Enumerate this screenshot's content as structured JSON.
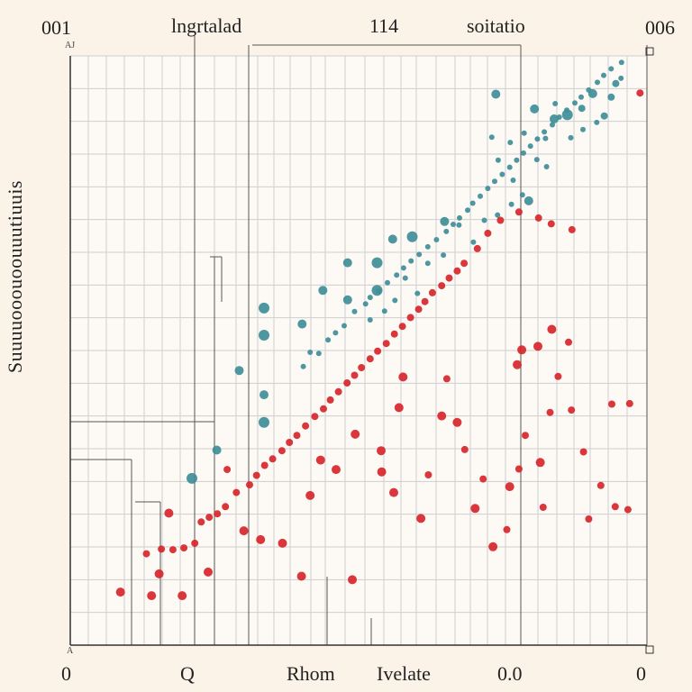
{
  "labels": {
    "top_left": "001",
    "top_left_small": "AJ",
    "title_1": "lngrtalad",
    "title_2": "114",
    "title_3": "soitatio",
    "top_right": "006",
    "bottom_left_small": "A",
    "x_ticks": [
      "0",
      "Q",
      "Rhom",
      "Ivelate",
      "0.0",
      "0"
    ],
    "ylabel": "Suuuuooouoouuutiuuis"
  },
  "colors": {
    "background": "#fbf3e8",
    "teal": "#3f8e98",
    "red": "#d7262b",
    "grid": "#cfcfcf",
    "axis": "#333333"
  },
  "chart_data": {
    "type": "scatter",
    "xlim": [
      0,
      100
    ],
    "ylim": [
      0,
      100
    ],
    "grid": true,
    "series": [
      {
        "color": "teal",
        "points": [
          [
            21.1,
            28.3,
            6
          ],
          [
            25.4,
            33.1,
            5
          ],
          [
            29.3,
            46.6,
            5
          ],
          [
            33.6,
            37.8,
            6
          ],
          [
            33.6,
            52.6,
            6
          ],
          [
            33.6,
            57.2,
            6
          ],
          [
            33.6,
            42.5,
            5
          ],
          [
            40.2,
            54.5,
            5
          ],
          [
            43.8,
            60.2,
            5
          ],
          [
            48.1,
            58.6,
            5
          ],
          [
            48.1,
            64.9,
            5
          ],
          [
            53.2,
            64.9,
            6
          ],
          [
            53.2,
            60.2,
            6
          ],
          [
            55.9,
            68.9,
            5
          ],
          [
            59.3,
            69.3,
            6
          ],
          [
            64.9,
            71.9,
            5
          ],
          [
            73.8,
            93.5,
            5
          ],
          [
            79.5,
            75.4,
            5
          ],
          [
            80.5,
            91.0,
            5
          ],
          [
            83.9,
            89.3,
            5
          ],
          [
            86.2,
            90.0,
            6
          ],
          [
            88.7,
            91.1,
            4
          ],
          [
            90.6,
            93.6,
            5
          ],
          [
            92.6,
            89.8,
            4
          ],
          [
            93.8,
            93.0,
            4
          ],
          [
            94.6,
            95.3,
            4
          ],
          [
            95.5,
            96.2,
            3
          ],
          [
            40.4,
            47.3,
            3
          ],
          [
            41.6,
            49.7,
            3
          ],
          [
            43.1,
            49.5,
            3
          ],
          [
            44.7,
            51.8,
            3
          ],
          [
            46.0,
            53.0,
            3
          ],
          [
            47.5,
            54.2,
            3
          ],
          [
            49.3,
            56.6,
            3
          ],
          [
            51.2,
            57.9,
            3
          ],
          [
            52.0,
            59.0,
            3
          ],
          [
            53.5,
            60.1,
            3
          ],
          [
            55.0,
            61.5,
            3
          ],
          [
            56.6,
            62.8,
            3
          ],
          [
            57.8,
            64.0,
            3
          ],
          [
            59.1,
            65.2,
            3
          ],
          [
            60.5,
            66.3,
            3
          ],
          [
            62.0,
            67.6,
            3
          ],
          [
            63.5,
            68.8,
            3
          ],
          [
            65.2,
            70.2,
            3
          ],
          [
            66.4,
            71.4,
            3
          ],
          [
            67.5,
            72.5,
            3
          ],
          [
            68.9,
            73.8,
            3
          ],
          [
            69.8,
            75.0,
            3
          ],
          [
            71.1,
            76.2,
            3
          ],
          [
            72.4,
            77.5,
            3
          ],
          [
            73.6,
            78.7,
            3
          ],
          [
            74.9,
            79.9,
            3
          ],
          [
            76.2,
            81.1,
            3
          ],
          [
            77.4,
            82.3,
            3
          ],
          [
            78.6,
            83.5,
            3
          ],
          [
            79.8,
            84.7,
            3
          ],
          [
            81.0,
            85.9,
            3
          ],
          [
            82.2,
            87.1,
            3
          ],
          [
            83.6,
            88.3,
            3
          ],
          [
            84.8,
            89.6,
            3
          ],
          [
            86.1,
            90.8,
            3
          ],
          [
            87.5,
            92.0,
            3
          ],
          [
            88.6,
            93.0,
            3
          ],
          [
            89.9,
            94.2,
            3
          ],
          [
            91.4,
            95.5,
            3
          ],
          [
            92.5,
            96.7,
            3
          ],
          [
            93.8,
            97.8,
            3
          ],
          [
            95.6,
            98.9,
            3
          ],
          [
            73.1,
            86.2,
            3
          ],
          [
            76.3,
            85.3,
            3
          ],
          [
            78.7,
            86.9,
            3
          ],
          [
            82.4,
            86.0,
            3
          ],
          [
            84.1,
            91.9,
            3
          ],
          [
            74.2,
            82.3,
            3
          ],
          [
            76.8,
            78.9,
            3
          ],
          [
            80.9,
            82.4,
            3
          ],
          [
            82.6,
            81.2,
            3
          ],
          [
            86.8,
            86.1,
            3
          ],
          [
            88.9,
            87.5,
            3
          ],
          [
            91.3,
            88.7,
            3
          ],
          [
            67.4,
            71.3,
            3
          ],
          [
            69.9,
            68.4,
            3
          ],
          [
            71.8,
            72.1,
            3
          ],
          [
            74.1,
            73.0,
            3
          ],
          [
            76.5,
            74.8,
            3
          ],
          [
            78.4,
            76.4,
            3
          ],
          [
            64.7,
            66.2,
            3
          ],
          [
            62.0,
            64.8,
            3
          ],
          [
            60.2,
            59.7,
            3
          ],
          [
            58.1,
            62.3,
            3
          ],
          [
            56.3,
            58.5,
            3
          ],
          [
            54.5,
            56.7,
            3
          ],
          [
            52.0,
            55.2,
            3
          ]
        ]
      },
      {
        "color": "red",
        "points": [
          [
            8.7,
            9.0,
            5
          ],
          [
            14.1,
            8.4,
            5
          ],
          [
            19.4,
            8.4,
            5
          ],
          [
            15.4,
            12.1,
            5
          ],
          [
            13.2,
            15.5,
            4
          ],
          [
            15.8,
            16.3,
            4
          ],
          [
            17.8,
            16.2,
            4
          ],
          [
            19.7,
            16.5,
            4
          ],
          [
            21.6,
            17.3,
            4
          ],
          [
            17.1,
            22.4,
            5
          ],
          [
            22.7,
            20.9,
            4
          ],
          [
            24.1,
            21.7,
            4
          ],
          [
            25.5,
            22.3,
            4
          ],
          [
            26.9,
            23.5,
            4
          ],
          [
            27.2,
            29.8,
            4
          ],
          [
            28.8,
            25.9,
            4
          ],
          [
            31.1,
            27.2,
            4
          ],
          [
            32.3,
            28.8,
            4
          ],
          [
            33.7,
            30.5,
            4
          ],
          [
            35.1,
            31.6,
            4
          ],
          [
            36.7,
            33.0,
            4
          ],
          [
            38.0,
            34.4,
            4
          ],
          [
            39.3,
            35.6,
            4
          ],
          [
            40.8,
            37.2,
            4
          ],
          [
            42.4,
            38.8,
            4
          ],
          [
            43.9,
            40.1,
            4
          ],
          [
            45.1,
            41.6,
            4
          ],
          [
            46.5,
            43.0,
            4
          ],
          [
            48.0,
            44.5,
            4
          ],
          [
            49.3,
            45.8,
            4
          ],
          [
            50.5,
            47.1,
            4
          ],
          [
            52.0,
            48.6,
            4
          ],
          [
            53.3,
            49.9,
            4
          ],
          [
            54.8,
            51.2,
            4
          ],
          [
            56.2,
            52.8,
            4
          ],
          [
            57.6,
            54.1,
            4
          ],
          [
            59.0,
            55.6,
            4
          ],
          [
            60.4,
            57.0,
            4
          ],
          [
            61.5,
            58.3,
            4
          ],
          [
            62.8,
            59.8,
            4
          ],
          [
            64.4,
            61.0,
            4
          ],
          [
            65.7,
            62.3,
            4
          ],
          [
            67.1,
            63.5,
            4
          ],
          [
            68.3,
            64.8,
            4
          ],
          [
            70.6,
            67.3,
            4
          ],
          [
            72.4,
            69.9,
            4
          ],
          [
            74.6,
            72.1,
            4
          ],
          [
            77.8,
            73.5,
            4
          ],
          [
            81.2,
            72.5,
            4
          ],
          [
            83.4,
            71.5,
            4
          ],
          [
            87.0,
            70.5,
            4
          ],
          [
            23.9,
            12.4,
            5
          ],
          [
            30.1,
            19.4,
            5
          ],
          [
            33.0,
            17.9,
            5
          ],
          [
            36.8,
            17.3,
            5
          ],
          [
            40.1,
            11.7,
            5
          ],
          [
            48.9,
            11.1,
            5
          ],
          [
            41.6,
            25.4,
            5
          ],
          [
            43.4,
            31.4,
            5
          ],
          [
            46.1,
            29.8,
            5
          ],
          [
            49.4,
            35.8,
            5
          ],
          [
            54.0,
            29.4,
            5
          ],
          [
            53.9,
            33.0,
            5
          ],
          [
            56.1,
            25.9,
            5
          ],
          [
            57.0,
            40.3,
            5
          ],
          [
            57.7,
            45.5,
            5
          ],
          [
            60.8,
            21.5,
            5
          ],
          [
            62.1,
            28.9,
            4
          ],
          [
            64.4,
            38.9,
            5
          ],
          [
            65.3,
            45.2,
            4
          ],
          [
            67.1,
            37.8,
            5
          ],
          [
            68.4,
            33.2,
            4
          ],
          [
            70.2,
            23.2,
            5
          ],
          [
            71.6,
            28.2,
            4
          ],
          [
            73.3,
            16.7,
            5
          ],
          [
            75.7,
            19.6,
            4
          ],
          [
            76.2,
            26.9,
            5
          ],
          [
            77.8,
            29.9,
            4
          ],
          [
            77.5,
            47.6,
            5
          ],
          [
            78.3,
            50.1,
            5
          ],
          [
            78.9,
            35.6,
            4
          ],
          [
            81.1,
            50.7,
            5
          ],
          [
            81.5,
            31.0,
            5
          ],
          [
            82.0,
            23.4,
            4
          ],
          [
            83.2,
            39.5,
            4
          ],
          [
            84.6,
            45.6,
            4
          ],
          [
            83.5,
            53.6,
            5
          ],
          [
            86.9,
            39.9,
            4
          ],
          [
            86.4,
            51.4,
            4
          ],
          [
            89.0,
            32.8,
            4
          ],
          [
            89.9,
            21.4,
            4
          ],
          [
            92.0,
            27.1,
            4
          ],
          [
            93.9,
            40.9,
            4
          ],
          [
            94.5,
            23.5,
            4
          ],
          [
            96.7,
            23.0,
            4
          ],
          [
            97.0,
            41.0,
            4
          ],
          [
            98.8,
            93.7,
            4
          ]
        ]
      }
    ]
  }
}
